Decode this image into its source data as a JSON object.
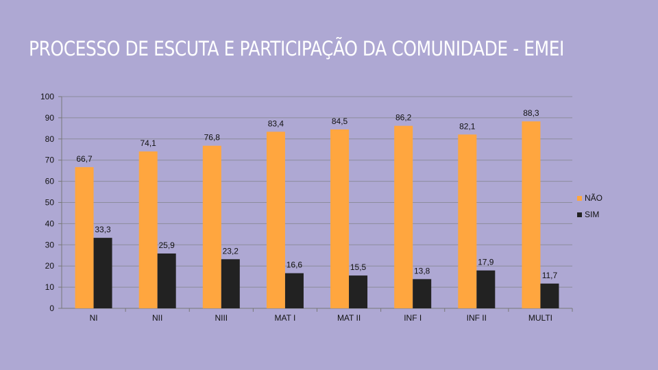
{
  "chart_data": {
    "type": "bar",
    "title": "PROCESSO DE ESCUTA E PARTICIPAÇÃO DA COMUNIDADE - EMEI",
    "categories": [
      "NI",
      "NII",
      "NIII",
      "MAT I",
      "MAT II",
      "INF I",
      "INF II",
      "MULTI"
    ],
    "series": [
      {
        "name": "NÃO",
        "color": "#ffa63f",
        "values": [
          66.7,
          74.1,
          76.8,
          83.4,
          84.5,
          86.2,
          82.1,
          88.3
        ],
        "labels": [
          "66,7",
          "74,1",
          "76,8",
          "83,4",
          "84,5",
          "86,2",
          "82,1",
          "88,3"
        ]
      },
      {
        "name": "SIM",
        "color": "#222222",
        "values": [
          33.3,
          25.9,
          23.2,
          16.6,
          15.5,
          13.8,
          17.9,
          11.7
        ],
        "labels": [
          "33,3",
          "25,9",
          "23,2",
          "16,6",
          "15,5",
          "13,8",
          "17,9",
          "11,7"
        ]
      }
    ],
    "ylim": [
      0,
      100
    ],
    "yticks": [
      0,
      10,
      20,
      30,
      40,
      50,
      60,
      70,
      80,
      90,
      100
    ],
    "grid": true,
    "legend": "right",
    "xlabel": "",
    "ylabel": ""
  }
}
